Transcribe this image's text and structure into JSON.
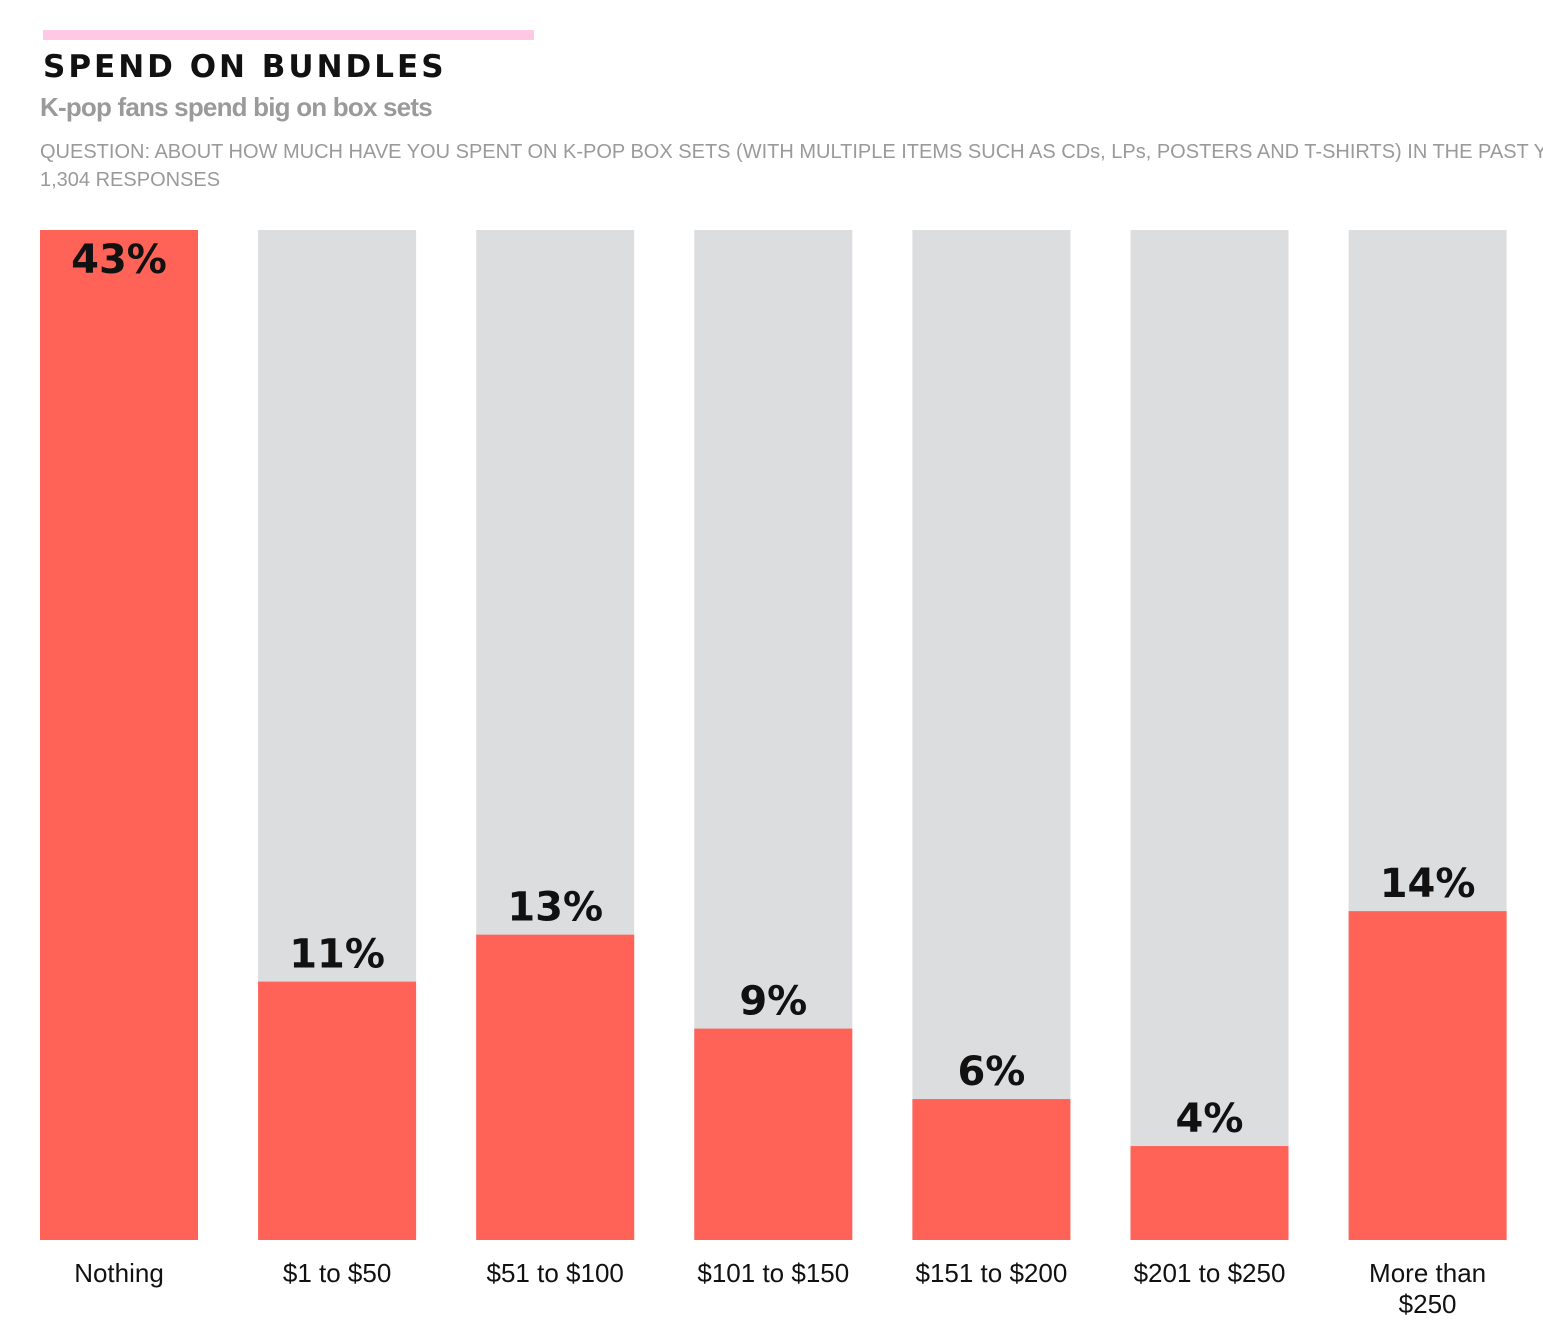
{
  "header": {
    "title": "SPEND ON BUNDLES",
    "subtitle": "K-pop fans spend big on box sets",
    "question": "QUESTION: ABOUT HOW MUCH HAVE YOU SPENT ON K-POP BOX SETS (WITH MULTIPLE ITEMS SUCH AS CDs, LPs, POSTERS AND T-SHIRTS) IN THE PAST YEAR?",
    "responses": "1,304 RESPONSES"
  },
  "colors": {
    "accent_rule": "#ffc9e6",
    "bar_fill": "#ff6257",
    "bar_track": "#dcdddf",
    "text": "#111111",
    "muted_text": "#9a9a9a"
  },
  "chart_data": {
    "type": "bar",
    "title": "SPEND ON BUNDLES",
    "subtitle": "K-pop fans spend big on box sets",
    "categories": [
      "Nothing",
      "$1 to $50",
      "$51 to $100",
      "$101 to $150",
      "$151 to $200",
      "$201 to $250",
      "More than $250"
    ],
    "values": [
      43,
      11,
      13,
      9,
      6,
      4,
      14
    ],
    "value_labels": [
      "43%",
      "11%",
      "13%",
      "9%",
      "6%",
      "4%",
      "14%"
    ],
    "unit": "%",
    "ylim": [
      0,
      43
    ],
    "grid": false,
    "legend": "none",
    "xlabel": "",
    "ylabel": ""
  }
}
